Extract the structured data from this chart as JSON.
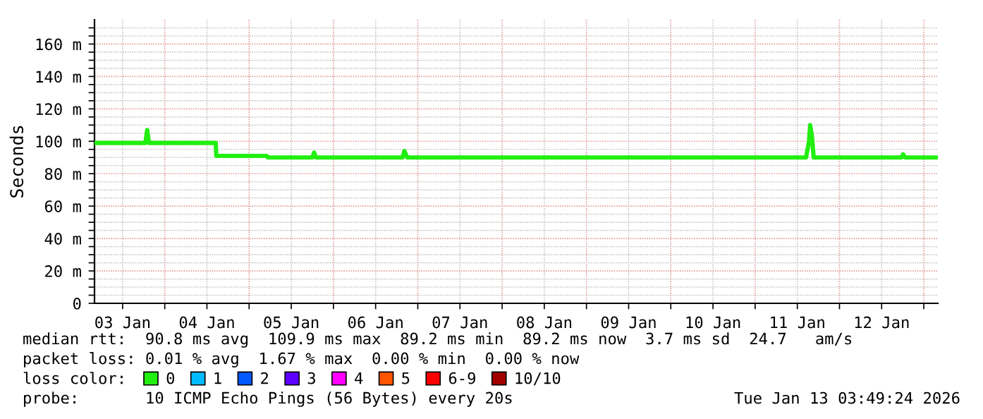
{
  "chart_data": {
    "type": "line",
    "ylabel": "Seconds",
    "xlim": [
      "2026-01-03T04:00",
      "2026-01-13T04:00"
    ],
    "xticks": [
      {
        "value": "2026-01-03T12:00",
        "label": "03 Jan"
      },
      {
        "value": "2026-01-04T00:00",
        "label": null
      },
      {
        "value": "2026-01-04T12:00",
        "label": "04 Jan"
      },
      {
        "value": "2026-01-05T00:00",
        "label": null
      },
      {
        "value": "2026-01-05T12:00",
        "label": "05 Jan"
      },
      {
        "value": "2026-01-06T00:00",
        "label": null
      },
      {
        "value": "2026-01-06T12:00",
        "label": "06 Jan"
      },
      {
        "value": "2026-01-07T00:00",
        "label": null
      },
      {
        "value": "2026-01-07T12:00",
        "label": "07 Jan"
      },
      {
        "value": "2026-01-08T00:00",
        "label": null
      },
      {
        "value": "2026-01-08T12:00",
        "label": "08 Jan"
      },
      {
        "value": "2026-01-09T00:00",
        "label": null
      },
      {
        "value": "2026-01-09T12:00",
        "label": "09 Jan"
      },
      {
        "value": "2026-01-10T00:00",
        "label": null
      },
      {
        "value": "2026-01-10T12:00",
        "label": "10 Jan"
      },
      {
        "value": "2026-01-11T00:00",
        "label": null
      },
      {
        "value": "2026-01-11T12:00",
        "label": "11 Jan"
      },
      {
        "value": "2026-01-12T00:00",
        "label": null
      },
      {
        "value": "2026-01-12T12:00",
        "label": "12 Jan"
      },
      {
        "value": "2026-01-13T00:00",
        "label": null
      }
    ],
    "ylim": [
      0,
      175
    ],
    "yticks": [
      0,
      {
        "value": 5,
        "label": null
      },
      {
        "value": 10,
        "label": null
      },
      {
        "value": 15,
        "label": null
      },
      {
        "value": 20,
        "label": "20 m"
      },
      {
        "value": 25,
        "label": null
      },
      {
        "value": 30,
        "label": null
      },
      {
        "value": 35,
        "label": null
      },
      {
        "value": 40,
        "label": "40 m"
      },
      {
        "value": 45,
        "label": null
      },
      {
        "value": 50,
        "label": null
      },
      {
        "value": 55,
        "label": null
      },
      {
        "value": 60,
        "label": "60 m"
      },
      {
        "value": 65,
        "label": null
      },
      {
        "value": 70,
        "label": null
      },
      {
        "value": 75,
        "label": null
      },
      {
        "value": 80,
        "label": "80 m"
      },
      {
        "value": 85,
        "label": null
      },
      {
        "value": 90,
        "label": null
      },
      {
        "value": 95,
        "label": null
      },
      {
        "value": 100,
        "label": "100 m"
      },
      {
        "value": 105,
        "label": null
      },
      {
        "value": 110,
        "label": null
      },
      {
        "value": 115,
        "label": null
      },
      {
        "value": 120,
        "label": "120 m"
      },
      {
        "value": 125,
        "label": null
      },
      {
        "value": 130,
        "label": null
      },
      {
        "value": 135,
        "label": null
      },
      {
        "value": 140,
        "label": "140 m"
      },
      {
        "value": 145,
        "label": null
      },
      {
        "value": 150,
        "label": null
      },
      {
        "value": 155,
        "label": null
      },
      {
        "value": 160,
        "label": "160 m"
      },
      {
        "value": 165,
        "label": null
      },
      {
        "value": 170,
        "label": null
      }
    ],
    "grid": true,
    "legend": "bottom",
    "legend_title": "loss color:",
    "series": [
      {
        "name": "0",
        "color": "#22ee11",
        "x": [
          "2026-01-03T04:00",
          "2026-01-03T18:30",
          "2026-01-03T19:00",
          "2026-01-03T19:30",
          "2026-01-04T14:30",
          "2026-01-04T14:40",
          "2026-01-05T05:00",
          "2026-01-05T05:20",
          "2026-01-05T18:00",
          "2026-01-05T18:30",
          "2026-01-05T19:00",
          "2026-01-06T19:40",
          "2026-01-06T20:10",
          "2026-01-06T21:00",
          "2026-01-11T14:30",
          "2026-01-11T15:20",
          "2026-01-11T15:40",
          "2026-01-11T16:10",
          "2026-01-11T16:40",
          "2026-01-12T17:40",
          "2026-01-12T18:07",
          "2026-01-12T18:40",
          "2026-01-13T03:45"
        ],
        "values": [
          99,
          99,
          107,
          99,
          99,
          91,
          91,
          90,
          90,
          93,
          90,
          90,
          94,
          90,
          90,
          100,
          110,
          103,
          90,
          90,
          92,
          90,
          90
        ]
      },
      {
        "name": "1",
        "color": "#00bbff"
      },
      {
        "name": "2",
        "color": "#0059ff"
      },
      {
        "name": "3",
        "color": "#5e00ff"
      },
      {
        "name": "4",
        "color": "#ff00ff"
      },
      {
        "name": "5",
        "color": "#ff5500"
      },
      {
        "name": "6-9",
        "color": "#ff0000"
      },
      {
        "name": "10/10",
        "color": "#a10000"
      }
    ],
    "annotations": [
      "median rtt:  90.8 ms avg  109.9 ms max  89.2 ms min  89.2 ms now  3.7 ms sd  24.7   am/s",
      "packet loss: 0.01 % avg  1.67 % max  0.00 % min  0.00 % now",
      "probe:       10 ICMP Echo Pings (56 Bytes) every 20s",
      "Tue Jan 13 03:49:24 2026"
    ]
  }
}
